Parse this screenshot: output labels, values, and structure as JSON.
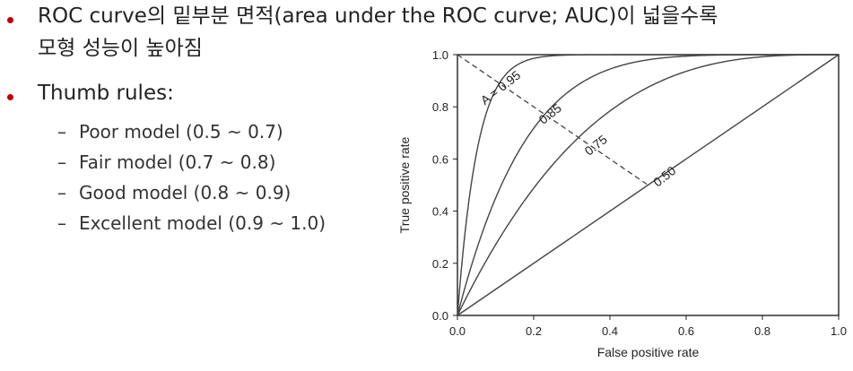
{
  "bullets": [
    {
      "lines": [
        "ROC curve의 밑부분 면적(area under the ROC curve; AUC)이 넓을수록",
        "모형 성능이 높아짐"
      ]
    },
    {
      "lines": [
        "Thumb rules:"
      ],
      "sub_items": [
        "Poor model (0.5 ~ 0.7)",
        "Fair model (0.7 ~ 0.8)",
        "Good model (0.8 ~ 0.9)",
        "Excellent model (0.9 ~ 1.0)"
      ]
    }
  ],
  "colors": {
    "bullet": "#c00000",
    "curve": "#444444",
    "axis": "#222222",
    "text": "#222222"
  },
  "chart_data": {
    "type": "line",
    "title": "",
    "xlabel": "False positive rate",
    "ylabel": "True positive rate",
    "xlim": [
      0,
      1
    ],
    "ylim": [
      0,
      1
    ],
    "x_ticks": [
      "0.0",
      "0.2",
      "0.4",
      "0.6",
      "0.8",
      "1.0"
    ],
    "y_ticks": [
      "0.0",
      "0.2",
      "0.4",
      "0.6",
      "0.8",
      "1.0"
    ],
    "grid": false,
    "series": [
      {
        "label": "A = 0.95",
        "auc": 0.95
      },
      {
        "label": "0.85",
        "auc": 0.85
      },
      {
        "label": "0.75",
        "auc": 0.75
      },
      {
        "label": "0.50",
        "auc": 0.5
      }
    ],
    "reference_line": {
      "style": "dashed",
      "from": [
        0,
        1
      ],
      "to": [
        0.5,
        0.5
      ]
    },
    "label_points": [
      {
        "series": 0,
        "x": 0.12,
        "y": 0.86
      },
      {
        "series": 1,
        "x": 0.25,
        "y": 0.76
      },
      {
        "series": 2,
        "x": 0.37,
        "y": 0.64
      },
      {
        "series": 3,
        "x": 0.55,
        "y": 0.52
      }
    ]
  }
}
